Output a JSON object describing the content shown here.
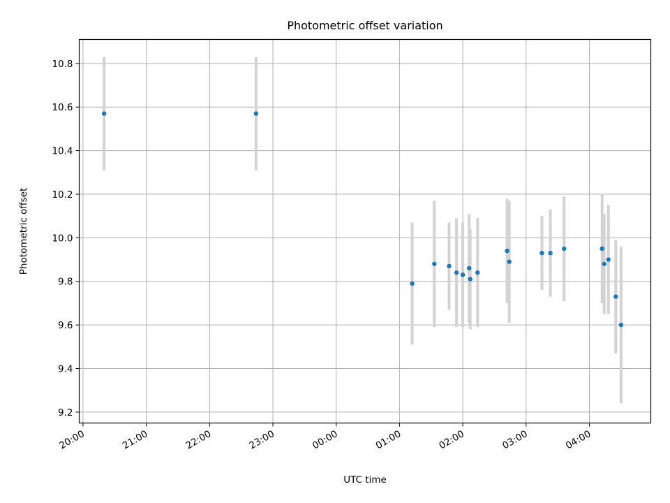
{
  "chart_data": {
    "type": "scatter",
    "title": "Photometric offset variation",
    "xlabel": "UTC time",
    "ylabel": "Photometric offset",
    "x_ticks": [
      "20:00",
      "21:00",
      "22:00",
      "23:00",
      "00:00",
      "01:00",
      "02:00",
      "03:00",
      "04:00"
    ],
    "y_ticks": [
      "9.2",
      "9.4",
      "9.6",
      "9.8",
      "10.0",
      "10.2",
      "10.4",
      "10.6",
      "10.8"
    ],
    "xlim": [
      "19:56",
      "24:58 (04:58)"
    ],
    "xlim_hours": [
      19.94,
      28.97
    ],
    "ylim": [
      9.15,
      10.91
    ],
    "grid": true,
    "colors": {
      "points": "#1f77b4",
      "error_bars": "#d3d3d3",
      "grid": "#b0b0b0"
    },
    "points": [
      {
        "time": "20:20",
        "y": 10.57,
        "err": 0.26
      },
      {
        "time": "22:44",
        "y": 10.57,
        "err": 0.26
      },
      {
        "time": "01:12",
        "y": 9.79,
        "err": 0.28
      },
      {
        "time": "01:33",
        "y": 9.88,
        "err": 0.29
      },
      {
        "time": "01:47",
        "y": 9.87,
        "err": 0.2
      },
      {
        "time": "01:54",
        "y": 9.84,
        "err": 0.25
      },
      {
        "time": "02:00",
        "y": 9.83,
        "err": 0.24
      },
      {
        "time": "02:06",
        "y": 9.86,
        "err": 0.25
      },
      {
        "time": "02:07",
        "y": 9.81,
        "err": 0.23
      },
      {
        "time": "02:14",
        "y": 9.84,
        "err": 0.25
      },
      {
        "time": "02:42",
        "y": 9.94,
        "err": 0.24
      },
      {
        "time": "02:44",
        "y": 9.89,
        "err": 0.28
      },
      {
        "time": "03:15",
        "y": 9.93,
        "err": 0.17
      },
      {
        "time": "03:23",
        "y": 9.93,
        "err": 0.2
      },
      {
        "time": "03:36",
        "y": 9.95,
        "err": 0.24
      },
      {
        "time": "04:12",
        "y": 9.95,
        "err": 0.25
      },
      {
        "time": "04:14",
        "y": 9.88,
        "err": 0.23
      },
      {
        "time": "04:18",
        "y": 9.9,
        "err": 0.25
      },
      {
        "time": "04:25",
        "y": 9.73,
        "err": 0.26
      },
      {
        "time": "04:30",
        "y": 9.6,
        "err": 0.36
      }
    ]
  }
}
